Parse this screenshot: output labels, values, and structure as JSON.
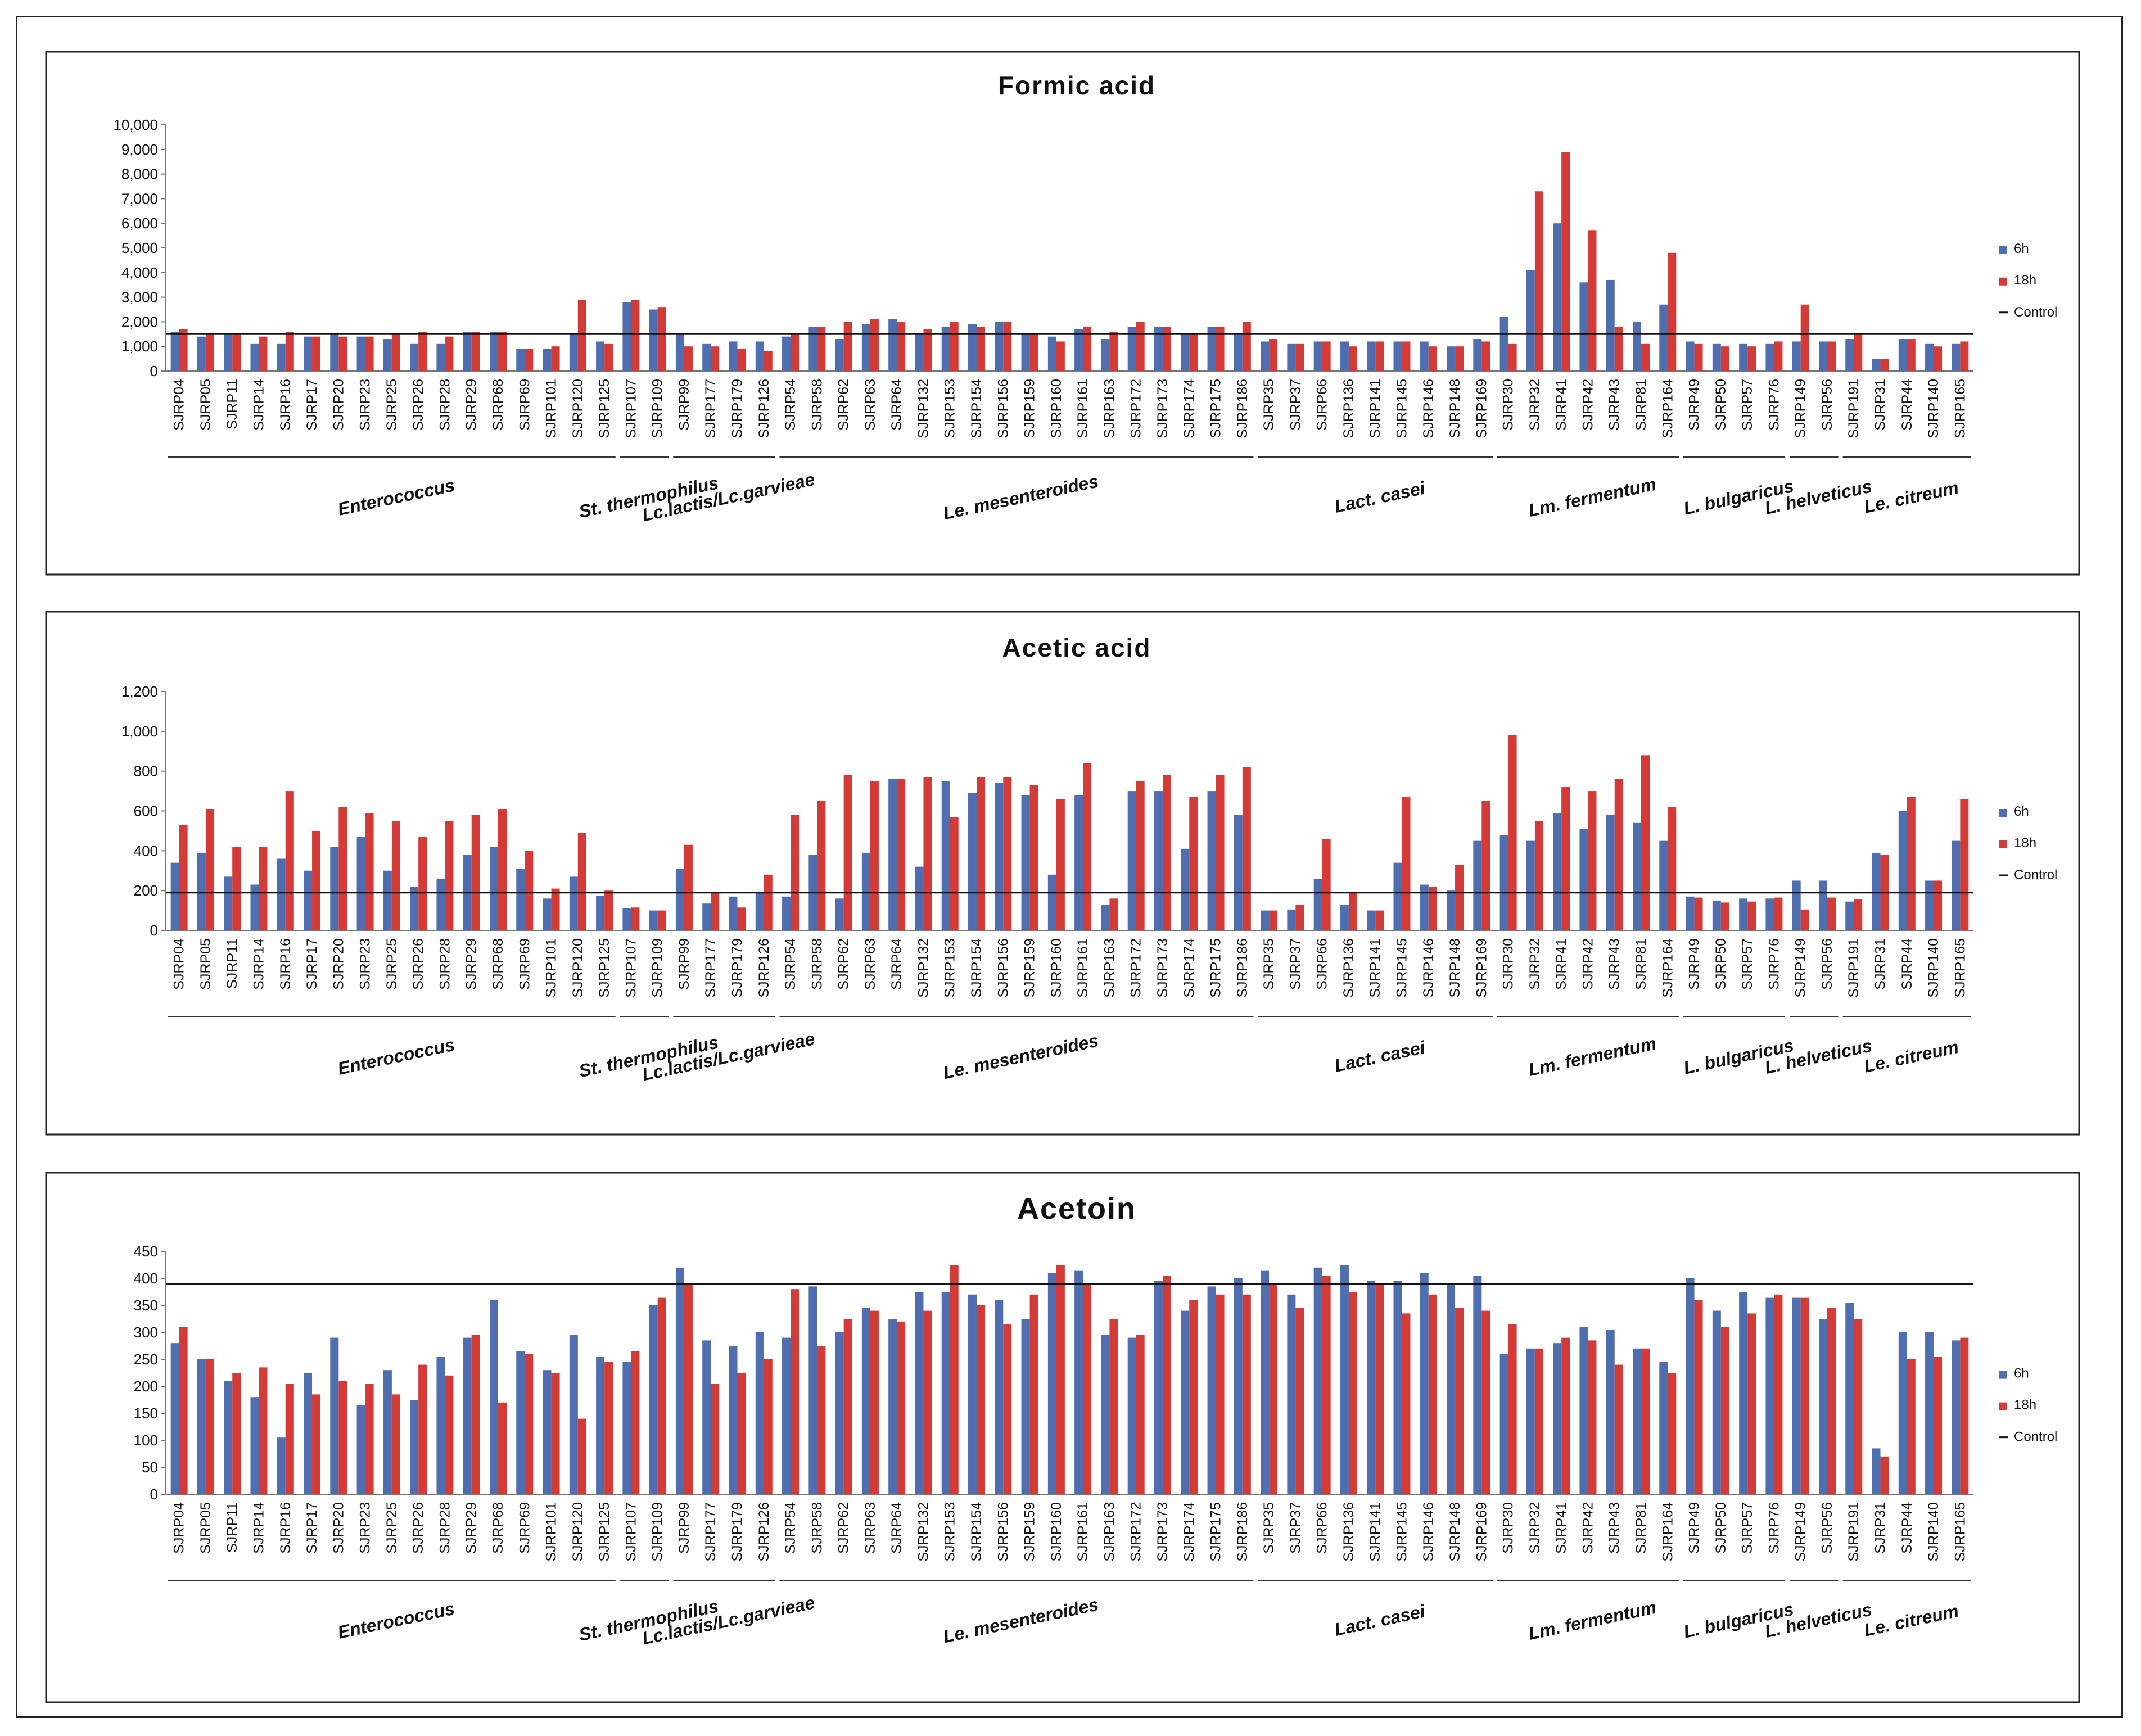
{
  "colors": {
    "h6": "#4F6EAF",
    "h18": "#D43A36",
    "control": "#111111",
    "frame": "#222222",
    "axis": "#777777"
  },
  "legend": {
    "h6": "6h",
    "h18": "18h",
    "control": "Control"
  },
  "strains": [
    "SJRP04",
    "SJRP05",
    "SJRP11",
    "SJRP14",
    "SJRP16",
    "SJRP17",
    "SJRP20",
    "SJRP23",
    "SJRP25",
    "SJRP26",
    "SJRP28",
    "SJRP29",
    "SJRP68",
    "SJRP69",
    "SJRP101",
    "SJRP120",
    "SJRP125",
    "SJRP107",
    "SJRP109",
    "SJRP99",
    "SJRP177",
    "SJRP179",
    "SJRP126",
    "SJRP54",
    "SJRP58",
    "SJRP62",
    "SJRP63",
    "SJRP64",
    "SJRP132",
    "SJRP153",
    "SJRP154",
    "SJRP156",
    "SJRP159",
    "SJRP160",
    "SJRP161",
    "SJRP163",
    "SJRP172",
    "SJRP173",
    "SJRP174",
    "SJRP175",
    "SJRP186",
    "SJRP35",
    "SJRP37",
    "SJRP66",
    "SJRP136",
    "SJRP141",
    "SJRP145",
    "SJRP146",
    "SJRP148",
    "SJRP169",
    "SJRP30",
    "SJRP32",
    "SJRP41",
    "SJRP42",
    "SJRP43",
    "SJRP81",
    "SJRP164",
    "SJRP49",
    "SJRP50",
    "SJRP57",
    "SJRP76",
    "SJRP149",
    "SJRP56",
    "SJRP191",
    "SJRP31",
    "SJRP44",
    "SJRP140",
    "SJRP165"
  ],
  "groups": [
    {
      "name": "Enterococcus",
      "start": 0,
      "end": 16
    },
    {
      "name": "St. thermophilus",
      "start": 17,
      "end": 18
    },
    {
      "name": "Lc.lactis/Lc.garvieae",
      "start": 19,
      "end": 22
    },
    {
      "name": "Le. mesenteroides",
      "start": 23,
      "end": 40
    },
    {
      "name": "Lact. casei",
      "start": 41,
      "end": 49
    },
    {
      "name": "Lm. fermentum",
      "start": 50,
      "end": 56
    },
    {
      "name": "L. bulgaricus",
      "start": 57,
      "end": 60
    },
    {
      "name": "L. helveticus",
      "start": 61,
      "end": 62
    },
    {
      "name": "Le. citreum",
      "start": 63,
      "end": 67
    }
  ],
  "chart_data": [
    {
      "type": "bar",
      "title": "Formic acid",
      "ylim": [
        0,
        10000
      ],
      "yticks": [
        "0",
        "1,000",
        "2,000",
        "3,000",
        "4,000",
        "5,000",
        "6,000",
        "7,000",
        "8,000",
        "9,000",
        "10,000"
      ],
      "control": 1500,
      "series": [
        {
          "name": "6h",
          "values": [
            1600,
            1400,
            1500,
            1100,
            1100,
            1400,
            1500,
            1400,
            1300,
            1100,
            1100,
            1600,
            1600,
            900,
            900,
            1500,
            1200,
            2800,
            2500,
            1500,
            1100,
            1200,
            1200,
            1400,
            1800,
            1300,
            1900,
            2100,
            1500,
            1800,
            1900,
            2000,
            1500,
            1400,
            1700,
            1300,
            1800,
            1800,
            1500,
            1800,
            1500,
            1200,
            1100,
            1200,
            1200,
            1200,
            1200,
            1200,
            1000,
            1300,
            2200,
            4100,
            6000,
            3600,
            3700,
            2000,
            2700,
            1200,
            1100,
            1100,
            1100,
            1200,
            1200,
            1300,
            500,
            1300,
            1100,
            1100
          ]
        },
        {
          "name": "18h",
          "values": [
            1700,
            1500,
            1500,
            1400,
            1600,
            1400,
            1400,
            1400,
            1500,
            1600,
            1400,
            1600,
            1600,
            900,
            1000,
            2900,
            1100,
            2900,
            2600,
            1000,
            1000,
            900,
            800,
            1500,
            1800,
            2000,
            2100,
            2000,
            1700,
            2000,
            1800,
            2000,
            1500,
            1200,
            1800,
            1600,
            2000,
            1800,
            1500,
            1800,
            2000,
            1300,
            1100,
            1200,
            1000,
            1200,
            1200,
            1000,
            1000,
            1200,
            1100,
            7300,
            8900,
            5700,
            1800,
            1100,
            4800,
            1100,
            1000,
            1000,
            1200,
            2700,
            1200,
            1500,
            500,
            1300,
            1000,
            1200
          ]
        }
      ]
    },
    {
      "type": "bar",
      "title": "Acetic acid",
      "ylim": [
        0,
        1200
      ],
      "yticks": [
        "0",
        "200",
        "400",
        "600",
        "800",
        "1,000",
        "1,200"
      ],
      "control": 190,
      "series": [
        {
          "name": "6h",
          "values": [
            340,
            390,
            270,
            230,
            360,
            300,
            420,
            470,
            300,
            220,
            260,
            380,
            420,
            310,
            160,
            270,
            175,
            110,
            100,
            310,
            135,
            170,
            190,
            170,
            380,
            160,
            390,
            760,
            320,
            750,
            690,
            740,
            680,
            280,
            680,
            130,
            700,
            700,
            410,
            700,
            580,
            100,
            105,
            260,
            130,
            100,
            340,
            230,
            200,
            450,
            480,
            450,
            590,
            510,
            580,
            540,
            450,
            170,
            150,
            160,
            160,
            250,
            250,
            145,
            390,
            600,
            250,
            450
          ]
        },
        {
          "name": "18h",
          "values": [
            530,
            610,
            420,
            420,
            700,
            500,
            620,
            590,
            550,
            470,
            550,
            580,
            610,
            400,
            210,
            490,
            200,
            115,
            100,
            430,
            195,
            115,
            280,
            580,
            650,
            780,
            750,
            760,
            770,
            570,
            770,
            770,
            730,
            660,
            840,
            160,
            750,
            780,
            670,
            780,
            820,
            100,
            130,
            460,
            190,
            100,
            670,
            220,
            330,
            650,
            980,
            550,
            720,
            700,
            760,
            880,
            620,
            165,
            140,
            145,
            165,
            105,
            165,
            155,
            380,
            670,
            250,
            660
          ]
        }
      ]
    },
    {
      "type": "bar",
      "title": "Acetoin",
      "ylim": [
        0,
        450
      ],
      "yticks": [
        "0",
        "50",
        "100",
        "150",
        "200",
        "250",
        "300",
        "350",
        "400",
        "450"
      ],
      "control": 390,
      "series": [
        {
          "name": "6h",
          "values": [
            280,
            250,
            210,
            180,
            105,
            225,
            290,
            165,
            230,
            175,
            255,
            290,
            360,
            265,
            230,
            295,
            255,
            245,
            350,
            420,
            285,
            275,
            300,
            290,
            385,
            300,
            345,
            325,
            375,
            375,
            370,
            360,
            325,
            410,
            415,
            295,
            290,
            395,
            340,
            385,
            400,
            415,
            370,
            420,
            425,
            395,
            395,
            410,
            390,
            405,
            260,
            270,
            280,
            310,
            305,
            270,
            245,
            400,
            340,
            375,
            365,
            365,
            325,
            355,
            85,
            300,
            300,
            285
          ]
        },
        {
          "name": "18h",
          "values": [
            310,
            250,
            225,
            235,
            205,
            185,
            210,
            205,
            185,
            240,
            220,
            295,
            170,
            260,
            225,
            140,
            245,
            265,
            365,
            390,
            205,
            225,
            250,
            380,
            275,
            325,
            340,
            320,
            340,
            425,
            350,
            315,
            370,
            425,
            390,
            325,
            295,
            405,
            360,
            370,
            370,
            390,
            345,
            405,
            375,
            390,
            335,
            370,
            345,
            340,
            315,
            270,
            290,
            285,
            240,
            270,
            225,
            360,
            310,
            335,
            370,
            365,
            345,
            325,
            70,
            250,
            255,
            290
          ]
        }
      ]
    }
  ]
}
